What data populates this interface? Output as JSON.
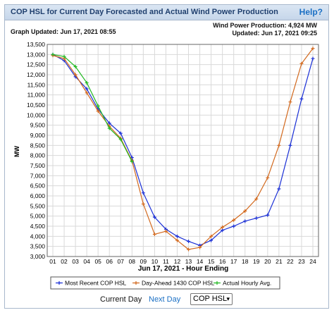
{
  "header": {
    "title": "COP HSL for Current Day Forecasted and Actual Wind Power Production",
    "help_label": "Help?",
    "graph_updated": "Graph Updated: Jun 17, 2021 08:55",
    "production": "Wind Power Production: 4,924 MW",
    "updated": "Updated: Jun 17, 2021 09:25"
  },
  "chart_data": {
    "type": "line",
    "xlabel": "Jun 17, 2021 - Hour Ending",
    "ylabel": "MW",
    "ylim": [
      3000,
      13500
    ],
    "yticks": [
      "3,000",
      "3,500",
      "4,000",
      "4,500",
      "5,000",
      "5,500",
      "6,000",
      "6,500",
      "7,000",
      "7,500",
      "8,000",
      "8,500",
      "9,000",
      "9,500",
      "10,000",
      "10,500",
      "11,000",
      "11,500",
      "12,000",
      "12,500",
      "13,000",
      "13,500"
    ],
    "categories": [
      "01",
      "02",
      "03",
      "04",
      "05",
      "06",
      "07",
      "08",
      "09",
      "10",
      "11",
      "12",
      "13",
      "14",
      "15",
      "16",
      "17",
      "18",
      "19",
      "20",
      "21",
      "22",
      "23",
      "24"
    ],
    "grid": true,
    "legend_position": "bottom",
    "series": [
      {
        "name": "Most Recent COP HSL",
        "color": "#1a2fd6",
        "marker": "plus",
        "values": [
          13000,
          12700,
          11900,
          11300,
          10300,
          9600,
          9100,
          7900,
          6150,
          4950,
          4350,
          4000,
          3750,
          3550,
          3800,
          4300,
          4500,
          4750,
          4900,
          5050,
          6350,
          8500,
          10800,
          12800
        ]
      },
      {
        "name": "Day-Ahead 1430 COP HSL",
        "color": "#d2691e",
        "marker": "plus",
        "values": [
          12950,
          12800,
          12000,
          11100,
          10200,
          9450,
          8850,
          7750,
          5600,
          4100,
          4250,
          3800,
          3350,
          3450,
          4000,
          4450,
          4800,
          5250,
          5850,
          6900,
          8500,
          10650,
          12550,
          13300
        ]
      },
      {
        "name": "Actual Hourly Avg.",
        "color": "#22b822",
        "marker": "plus",
        "values": [
          13000,
          12900,
          12400,
          11600,
          10450,
          9350,
          8800,
          7700,
          null,
          null,
          null,
          null,
          null,
          null,
          null,
          null,
          null,
          null,
          null,
          null,
          null,
          null,
          null,
          null
        ]
      }
    ]
  },
  "controls": {
    "current_day": "Current Day",
    "next_day": "Next Day",
    "select_value": "COP HSL",
    "select_arrow": "▾"
  }
}
